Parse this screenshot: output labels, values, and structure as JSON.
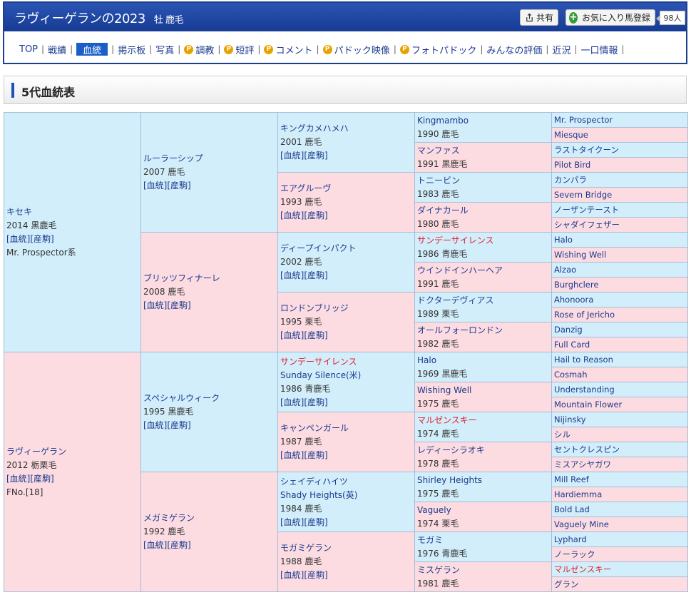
{
  "header": {
    "title": "ラヴィーゲランの2023",
    "subtitle": "牡 鹿毛",
    "share_label": "共有",
    "fav_label": "お気に入り馬登録",
    "fav_count": "98人",
    "colors": {
      "header_bg": "#1d3f8f",
      "nav_active": "#1a5fc8",
      "sire_cell": "#d2eefa",
      "dam_cell": "#fcdbe1",
      "highlight_red": "#e02030"
    }
  },
  "nav": [
    {
      "label": "TOP",
      "p": false,
      "active": false
    },
    {
      "label": "戦績",
      "p": false,
      "active": false
    },
    {
      "label": "血統",
      "p": false,
      "active": true
    },
    {
      "label": "掲示板",
      "p": false,
      "active": false
    },
    {
      "label": "写真",
      "p": false,
      "active": false
    },
    {
      "label": "調教",
      "p": true,
      "active": false
    },
    {
      "label": "短評",
      "p": true,
      "active": false
    },
    {
      "label": "コメント",
      "p": true,
      "active": false
    },
    {
      "label": "パドック映像",
      "p": true,
      "active": false
    },
    {
      "label": "フォトパドック",
      "p": true,
      "active": false
    },
    {
      "label": "みんなの評価",
      "p": false,
      "active": false
    },
    {
      "label": "近況",
      "p": false,
      "active": false
    },
    {
      "label": "一口情報",
      "p": false,
      "active": false
    }
  ],
  "nav_premium_mark": "P",
  "section_title": "5代血統表",
  "links": {
    "pedigree": "[血統]",
    "foal": "[産駒]"
  },
  "pedigree": {
    "g1": [
      {
        "name": "キセキ",
        "info": "2014 黒鹿毛",
        "extra": "Mr. Prospector系"
      },
      {
        "name": "ラヴィーゲラン",
        "info": "2012 栃栗毛",
        "extra": "FNo.[18]"
      }
    ],
    "g2": [
      {
        "name": "ルーラーシップ",
        "info": "2007 鹿毛"
      },
      {
        "name": "ブリッツフィナーレ",
        "info": "2008 鹿毛"
      },
      {
        "name": "スペシャルウィーク",
        "info": "1995 黒鹿毛"
      },
      {
        "name": "メガミゲラン",
        "info": "1992 鹿毛"
      }
    ],
    "g3": [
      {
        "name": "キングカメハメハ",
        "info": "2001 鹿毛"
      },
      {
        "name": "エアグルーヴ",
        "info": "1993 鹿毛"
      },
      {
        "name": "ディープインパクト",
        "info": "2002 鹿毛"
      },
      {
        "name": "ロンドンブリッジ",
        "info": "1995 栗毛"
      },
      {
        "name": "サンデーサイレンス",
        "eng": "Sunday Silence(米)",
        "info": "1986 青鹿毛",
        "red": true
      },
      {
        "name": "キャンペンガール",
        "info": "1987 鹿毛"
      },
      {
        "name": "シェイディハイツ",
        "eng": "Shady Heights(英)",
        "info": "1984 鹿毛"
      },
      {
        "name": "モガミゲラン",
        "info": "1988 鹿毛"
      }
    ],
    "g4": [
      {
        "name": "Kingmambo",
        "info": "1990 鹿毛"
      },
      {
        "name": "マンファス",
        "info": "1991 黒鹿毛"
      },
      {
        "name": "トニービン",
        "info": "1983 鹿毛"
      },
      {
        "name": "ダイナカール",
        "info": "1980 鹿毛"
      },
      {
        "name": "サンデーサイレンス",
        "info": "1986 青鹿毛",
        "red": true
      },
      {
        "name": "ウインドインハーヘア",
        "info": "1991 鹿毛"
      },
      {
        "name": "ドクターデヴィアス",
        "info": "1989 栗毛"
      },
      {
        "name": "オールフォーロンドン",
        "info": "1982 鹿毛"
      },
      {
        "name": "Halo",
        "info": "1969 黒鹿毛"
      },
      {
        "name": "Wishing Well",
        "info": "1975 鹿毛"
      },
      {
        "name": "マルゼンスキー",
        "info": "1974 鹿毛",
        "red": true
      },
      {
        "name": "レディーシラオキ",
        "info": "1978 鹿毛"
      },
      {
        "name": "Shirley Heights",
        "info": "1975 鹿毛"
      },
      {
        "name": "Vaguely",
        "info": "1974 栗毛"
      },
      {
        "name": "モガミ",
        "info": "1976 青鹿毛"
      },
      {
        "name": "ミスゲラン",
        "info": "1981 鹿毛"
      }
    ],
    "g5": [
      {
        "name": "Mr. Prospector"
      },
      {
        "name": "Miesque"
      },
      {
        "name": "ラストタイクーン"
      },
      {
        "name": "Pilot Bird"
      },
      {
        "name": "カンパラ"
      },
      {
        "name": "Severn Bridge"
      },
      {
        "name": "ノーザンテースト"
      },
      {
        "name": "シャダイフェザー"
      },
      {
        "name": "Halo"
      },
      {
        "name": "Wishing Well"
      },
      {
        "name": "Alzao"
      },
      {
        "name": "Burghclere"
      },
      {
        "name": "Ahonoora"
      },
      {
        "name": "Rose of Jericho"
      },
      {
        "name": "Danzig"
      },
      {
        "name": "Full Card"
      },
      {
        "name": "Hail to Reason"
      },
      {
        "name": "Cosmah"
      },
      {
        "name": "Understanding"
      },
      {
        "name": "Mountain Flower"
      },
      {
        "name": "Nijinsky"
      },
      {
        "name": "シル"
      },
      {
        "name": "セントクレスピン"
      },
      {
        "name": "ミスアシヤガワ"
      },
      {
        "name": "Mill Reef"
      },
      {
        "name": "Hardiemma"
      },
      {
        "name": "Bold Lad"
      },
      {
        "name": "Vaguely Mine"
      },
      {
        "name": "Lyphard"
      },
      {
        "name": "ノーラック"
      },
      {
        "name": "マルゼンスキー",
        "red": true
      },
      {
        "name": "グラン"
      }
    ]
  }
}
